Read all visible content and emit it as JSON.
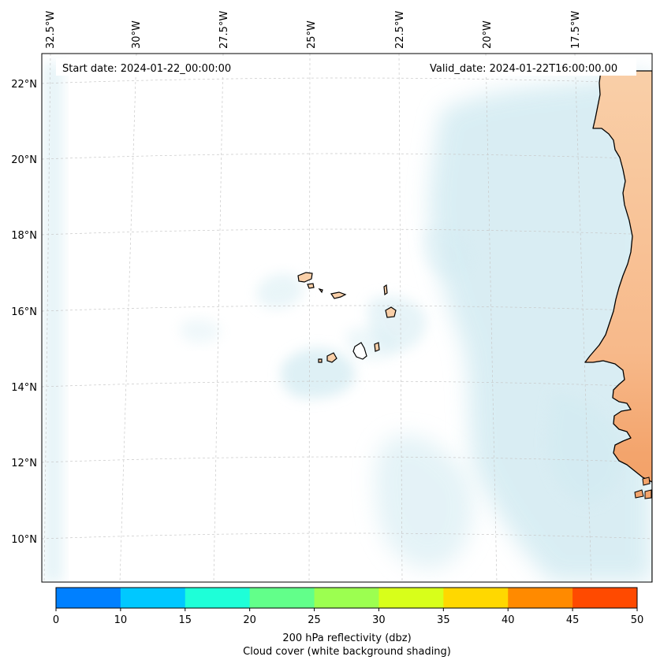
{
  "header": {
    "start_date": "Start date: 2024-01-22_00:00:00",
    "valid_date": "Valid_date: 2024-01-22T16:00:00.00"
  },
  "map": {
    "lon_labels": [
      "32.5°W",
      "30°W",
      "27.5°W",
      "25°W",
      "22.5°W",
      "20°W",
      "17.5°W"
    ],
    "lat_labels": [
      "22°N",
      "20°N",
      "18°N",
      "16°N",
      "14°N",
      "12°N",
      "10°N"
    ],
    "colors": {
      "land": "#f9cfa8",
      "land_warm": "#f3a46c",
      "cloud": "#d3ebf2",
      "coast": "#000000",
      "grid": "#c8c8c8"
    }
  },
  "colorbar": {
    "ticks": [
      "0",
      "10",
      "15",
      "20",
      "25",
      "30",
      "35",
      "40",
      "45",
      "50"
    ],
    "colors": [
      "#0080ff",
      "#00c8ff",
      "#1effd8",
      "#62ff8a",
      "#9cff50",
      "#d8ff1a",
      "#ffd800",
      "#ff8a00",
      "#ff4a00"
    ],
    "label_line1": "200 hPa reflectivity (dbz)",
    "label_line2": "Cloud cover (white background shading)"
  }
}
